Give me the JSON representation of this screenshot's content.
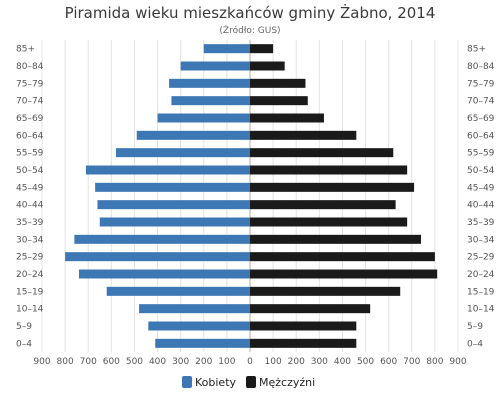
{
  "chart_data": {
    "type": "bar",
    "orientation": "horizontal",
    "layout": "population-pyramid",
    "title": "Piramida wieku mieszkańców gminy Żabno, 2014",
    "subtitle": "(Źródło: GUS)",
    "categories": [
      "85+",
      "80–84",
      "75–79",
      "70–74",
      "65–69",
      "60–64",
      "55–59",
      "50–54",
      "45–49",
      "40–44",
      "35–39",
      "30–34",
      "25–29",
      "20–24",
      "15–19",
      "10–14",
      "5–9",
      "0–4"
    ],
    "series": [
      {
        "name": "Kobiety",
        "color": "#3d78b4",
        "values": [
          200,
          300,
          350,
          340,
          400,
          490,
          580,
          710,
          670,
          660,
          650,
          760,
          800,
          740,
          620,
          480,
          440,
          410
        ]
      },
      {
        "name": "Mężczyźni",
        "color": "#1a1a1a",
        "values": [
          100,
          150,
          240,
          250,
          320,
          460,
          620,
          680,
          710,
          630,
          680,
          740,
          800,
          810,
          650,
          520,
          460,
          460
        ]
      }
    ],
    "xlim": [
      -900,
      900
    ],
    "x_tick_labels": [
      "900",
      "800",
      "700",
      "600",
      "500",
      "400",
      "300",
      "200",
      "100",
      "0",
      "100",
      "200",
      "300",
      "400",
      "500",
      "600",
      "700",
      "800",
      "900"
    ],
    "grid": true,
    "legend_position": "bottom"
  }
}
